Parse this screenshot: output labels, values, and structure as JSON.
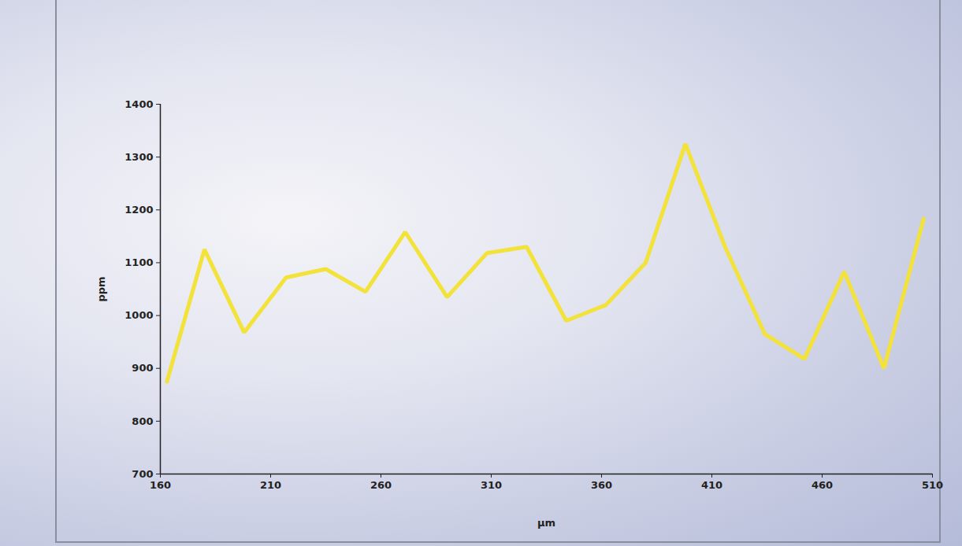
{
  "chart_data": {
    "type": "line",
    "xlabel": "µm",
    "ylabel": "ppm",
    "x": [
      163,
      180,
      198,
      217,
      235,
      253,
      271,
      290,
      308,
      326,
      344,
      362,
      380,
      398,
      416,
      434,
      452,
      470,
      488,
      506
    ],
    "values": [
      875,
      1125,
      968,
      1072,
      1088,
      1045,
      1158,
      1035,
      1118,
      1130,
      990,
      1020,
      1100,
      1325,
      1130,
      965,
      918,
      1083,
      900,
      1183
    ],
    "color": "#f2e23a",
    "xlim": [
      160,
      510
    ],
    "xticks": [
      160,
      210,
      260,
      310,
      360,
      410,
      460,
      510
    ],
    "ylim": [
      700,
      1400
    ],
    "yticks": [
      700,
      800,
      900,
      1000,
      1100,
      1200,
      1300,
      1400
    ],
    "grid": false
  }
}
